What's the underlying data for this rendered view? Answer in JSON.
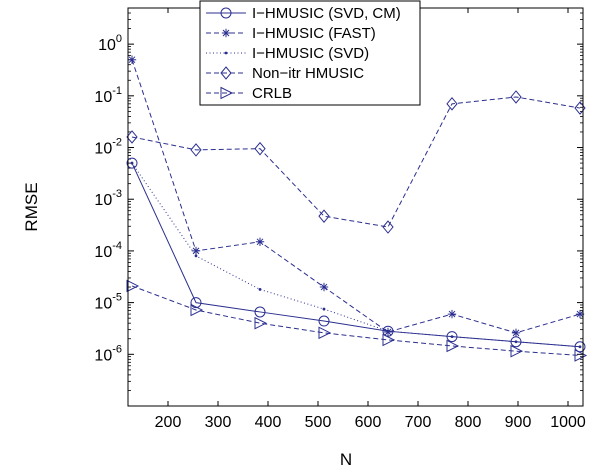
{
  "chart_data": {
    "type": "line",
    "xlabel": "N",
    "ylabel": "RMSE",
    "xlim": [
      120,
      1030
    ],
    "ylim": [
      1e-07,
      5
    ],
    "yscale": "log",
    "grid": false,
    "legend_position": "top-center",
    "x_ticks": [
      200,
      300,
      400,
      500,
      600,
      700,
      800,
      900,
      1000
    ],
    "y_ticks": [
      {
        "value": 1e-06,
        "base": "10",
        "exp": "-6"
      },
      {
        "value": 1e-05,
        "base": "10",
        "exp": "-5"
      },
      {
        "value": 0.0001,
        "base": "10",
        "exp": "-4"
      },
      {
        "value": 0.001,
        "base": "10",
        "exp": "-3"
      },
      {
        "value": 0.01,
        "base": "10",
        "exp": "-2"
      },
      {
        "value": 0.1,
        "base": "10",
        "exp": "-1"
      },
      {
        "value": 1,
        "base": "10",
        "exp": "0"
      }
    ],
    "x": [
      128,
      256,
      384,
      512,
      640,
      768,
      896,
      1024
    ],
    "color": "#2b2f8f",
    "series": [
      {
        "name": "I−HMUSIC (SVD, CM)",
        "line": "solid",
        "marker": "circle",
        "values": [
          0.005,
          1e-05,
          6.6e-06,
          4.4e-06,
          2.8e-06,
          2.2e-06,
          1.75e-06,
          1.4e-06
        ]
      },
      {
        "name": "I−HMUSIC (FAST)",
        "line": "dashed",
        "marker": "star",
        "values": [
          0.5,
          0.0001,
          0.00015,
          2e-05,
          2.7e-06,
          6e-06,
          2.6e-06,
          6e-06
        ]
      },
      {
        "name": "I−HMUSIC (SVD)",
        "line": "dotted",
        "marker": "dot",
        "values": [
          0.005,
          8e-05,
          1.8e-05,
          7.5e-06,
          2.8e-06,
          2.2e-06,
          1.75e-06,
          1.4e-06
        ]
      },
      {
        "name": "Non−itr HMUSIC",
        "line": "dashed",
        "marker": "diamond",
        "values": [
          0.016,
          0.009,
          0.0095,
          0.00047,
          0.00029,
          0.07,
          0.095,
          0.058
        ]
      },
      {
        "name": "CRLB",
        "line": "dashed",
        "marker": "triangle-right",
        "values": [
          2.1e-05,
          7.2e-06,
          4e-06,
          2.6e-06,
          1.9e-06,
          1.45e-06,
          1.15e-06,
          9.5e-07
        ]
      }
    ]
  }
}
